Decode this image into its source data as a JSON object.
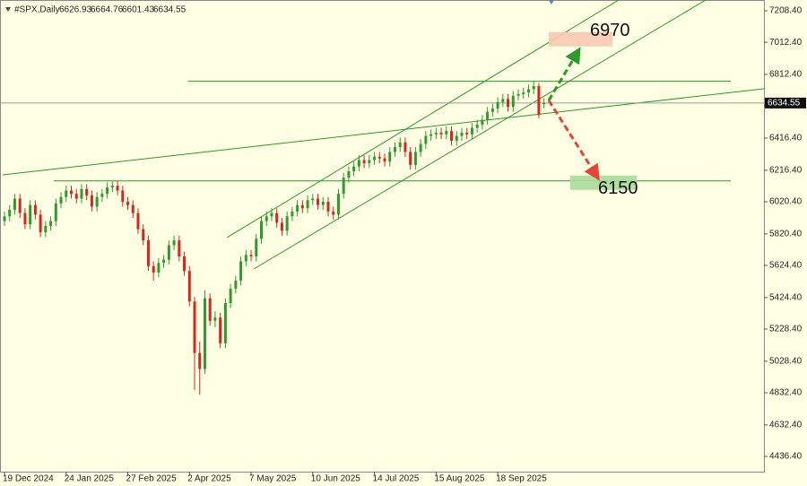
{
  "chart_data": {
    "type": "candlestick",
    "title": "#SPX,Daily",
    "header_ohlc": [
      6626.93,
      6664.76,
      6601.43,
      6634.55
    ],
    "up_color": "#2f9a2f",
    "down_color": "#d9261c",
    "open": [
      5900,
      5930,
      5970,
      6040,
      5950,
      5880,
      6000,
      5940,
      5830,
      5870,
      5900,
      6010,
      6050,
      6090,
      6070,
      6040,
      6100,
      6060,
      5990,
      6050,
      6070,
      6110,
      6120,
      6090,
      6020,
      6000,
      5950,
      5850,
      5780,
      5620,
      5580,
      5640,
      5660,
      5750,
      5780,
      5680,
      5590,
      5400,
      5080,
      4980,
      5420,
      5280,
      5300,
      5140,
      5390,
      5480,
      5530,
      5650,
      5690,
      5680,
      5790,
      5900,
      5930,
      5950,
      5890,
      5840,
      5930,
      5960,
      6000,
      5980,
      6030,
      6040,
      6000,
      6020,
      5960,
      5940,
      6070,
      6170,
      6210,
      6240,
      6280,
      6260,
      6280,
      6300,
      6290,
      6270,
      6330,
      6360,
      6390,
      6330,
      6250,
      6330,
      6380,
      6430,
      6440,
      6450,
      6440,
      6460,
      6400,
      6430,
      6450,
      6440,
      6480,
      6500,
      6530,
      6580,
      6600,
      6640,
      6660,
      6610,
      6680,
      6690,
      6700,
      6720,
      6740,
      6626.93
    ],
    "high": [
      5960,
      6000,
      6070,
      6070,
      5980,
      6030,
      6030,
      5970,
      5900,
      5930,
      6040,
      6080,
      6120,
      6120,
      6100,
      6130,
      6130,
      6090,
      6080,
      6100,
      6140,
      6150,
      6150,
      6120,
      6050,
      6030,
      5980,
      5880,
      5810,
      5650,
      5670,
      5690,
      5780,
      5810,
      5810,
      5710,
      5620,
      5430,
      5150,
      5470,
      5450,
      5340,
      5330,
      5420,
      5510,
      5560,
      5680,
      5720,
      5720,
      5820,
      5930,
      5960,
      5980,
      5980,
      5920,
      5960,
      5990,
      6030,
      6030,
      6060,
      6070,
      6070,
      6050,
      6050,
      5990,
      6100,
      6200,
      6240,
      6270,
      6310,
      6310,
      6310,
      6330,
      6330,
      6320,
      6360,
      6390,
      6420,
      6420,
      6360,
      6360,
      6410,
      6460,
      6470,
      6480,
      6480,
      6490,
      6490,
      6460,
      6480,
      6480,
      6510,
      6530,
      6560,
      6610,
      6630,
      6670,
      6690,
      6690,
      6710,
      6720,
      6730,
      6750,
      6770,
      6760,
      6664.76
    ],
    "low": [
      5870,
      5900,
      5940,
      5920,
      5850,
      5850,
      5910,
      5800,
      5800,
      5840,
      5870,
      5980,
      6020,
      6040,
      6010,
      6010,
      6030,
      5960,
      5960,
      6020,
      6040,
      6080,
      6060,
      5990,
      5970,
      5920,
      5820,
      5750,
      5590,
      5530,
      5550,
      5610,
      5630,
      5720,
      5650,
      5560,
      5370,
      4850,
      4820,
      4950,
      5250,
      5240,
      5110,
      5110,
      5360,
      5450,
      5500,
      5620,
      5650,
      5650,
      5760,
      5870,
      5900,
      5860,
      5810,
      5810,
      5900,
      5930,
      5950,
      5950,
      6000,
      5970,
      5970,
      5930,
      5910,
      5910,
      6040,
      6140,
      6180,
      6210,
      6230,
      6230,
      6250,
      6260,
      6240,
      6240,
      6300,
      6330,
      6300,
      6220,
      6220,
      6300,
      6350,
      6400,
      6410,
      6410,
      6410,
      6370,
      6370,
      6400,
      6410,
      6410,
      6450,
      6470,
      6500,
      6550,
      6570,
      6610,
      6580,
      6580,
      6650,
      6660,
      6670,
      6690,
      6540,
      6601.43
    ],
    "close": [
      5930,
      5970,
      6040,
      5950,
      5880,
      6000,
      5940,
      5830,
      5870,
      5900,
      6010,
      6050,
      6090,
      6070,
      6040,
      6100,
      6060,
      5990,
      6050,
      6070,
      6110,
      6120,
      6090,
      6020,
      6000,
      5950,
      5850,
      5780,
      5620,
      5580,
      5640,
      5660,
      5750,
      5780,
      5680,
      5590,
      5400,
      5080,
      4980,
      5420,
      5280,
      5300,
      5140,
      5390,
      5480,
      5530,
      5650,
      5690,
      5680,
      5790,
      5900,
      5930,
      5950,
      5890,
      5840,
      5930,
      5960,
      6000,
      5980,
      6030,
      6040,
      6000,
      6020,
      5960,
      5940,
      6070,
      6170,
      6210,
      6240,
      6280,
      6260,
      6280,
      6300,
      6290,
      6270,
      6330,
      6360,
      6390,
      6330,
      6250,
      6330,
      6380,
      6430,
      6440,
      6450,
      6440,
      6460,
      6400,
      6430,
      6450,
      6440,
      6480,
      6500,
      6530,
      6580,
      6600,
      6640,
      6660,
      6610,
      6680,
      6690,
      6700,
      6720,
      6740,
      6560,
      6634.55
    ],
    "xticks": [
      {
        "value": 0,
        "label": "19 Dec 2024"
      },
      {
        "value": 12,
        "label": "24 Jan 2025"
      },
      {
        "value": 24,
        "label": "27 Feb 2025"
      },
      {
        "value": 36,
        "label": "2 Apr 2025"
      },
      {
        "value": 48,
        "label": "7 May 2025"
      },
      {
        "value": 60,
        "label": "10 Jun 2025"
      },
      {
        "value": 72,
        "label": "14 Jul 2025"
      },
      {
        "value": 84,
        "label": "15 Aug 2025"
      },
      {
        "value": 96,
        "label": "18 Sep 2025"
      }
    ],
    "ylim": [
      4341.7,
      7275.3
    ],
    "yticks": [
      {
        "value": 7208.4,
        "label": "7208.40"
      },
      {
        "value": 7012.4,
        "label": "7012.40"
      },
      {
        "value": 6812.4,
        "label": "6812.40"
      },
      {
        "value": 6616.4,
        "label": "6616.40"
      },
      {
        "value": 6416.4,
        "label": "6416.40"
      },
      {
        "value": 6216.4,
        "label": "6216.40"
      },
      {
        "value": 6020.4,
        "label": "6020.40"
      },
      {
        "value": 5820.4,
        "label": "5820.40"
      },
      {
        "value": 5624.4,
        "label": "5624.40"
      },
      {
        "value": 5424.4,
        "label": "5424.40"
      },
      {
        "value": 5228.4,
        "label": "5228.40"
      },
      {
        "value": 5028.4,
        "label": "5028.40"
      },
      {
        "value": 4832.4,
        "label": "4832.40"
      },
      {
        "value": 4632.4,
        "label": "4632.40"
      },
      {
        "value": 4436.4,
        "label": "4436.40"
      }
    ],
    "last_price": 6634.55,
    "levels": [
      6770,
      6150
    ],
    "targets": [
      6970,
      6150
    ]
  }
}
